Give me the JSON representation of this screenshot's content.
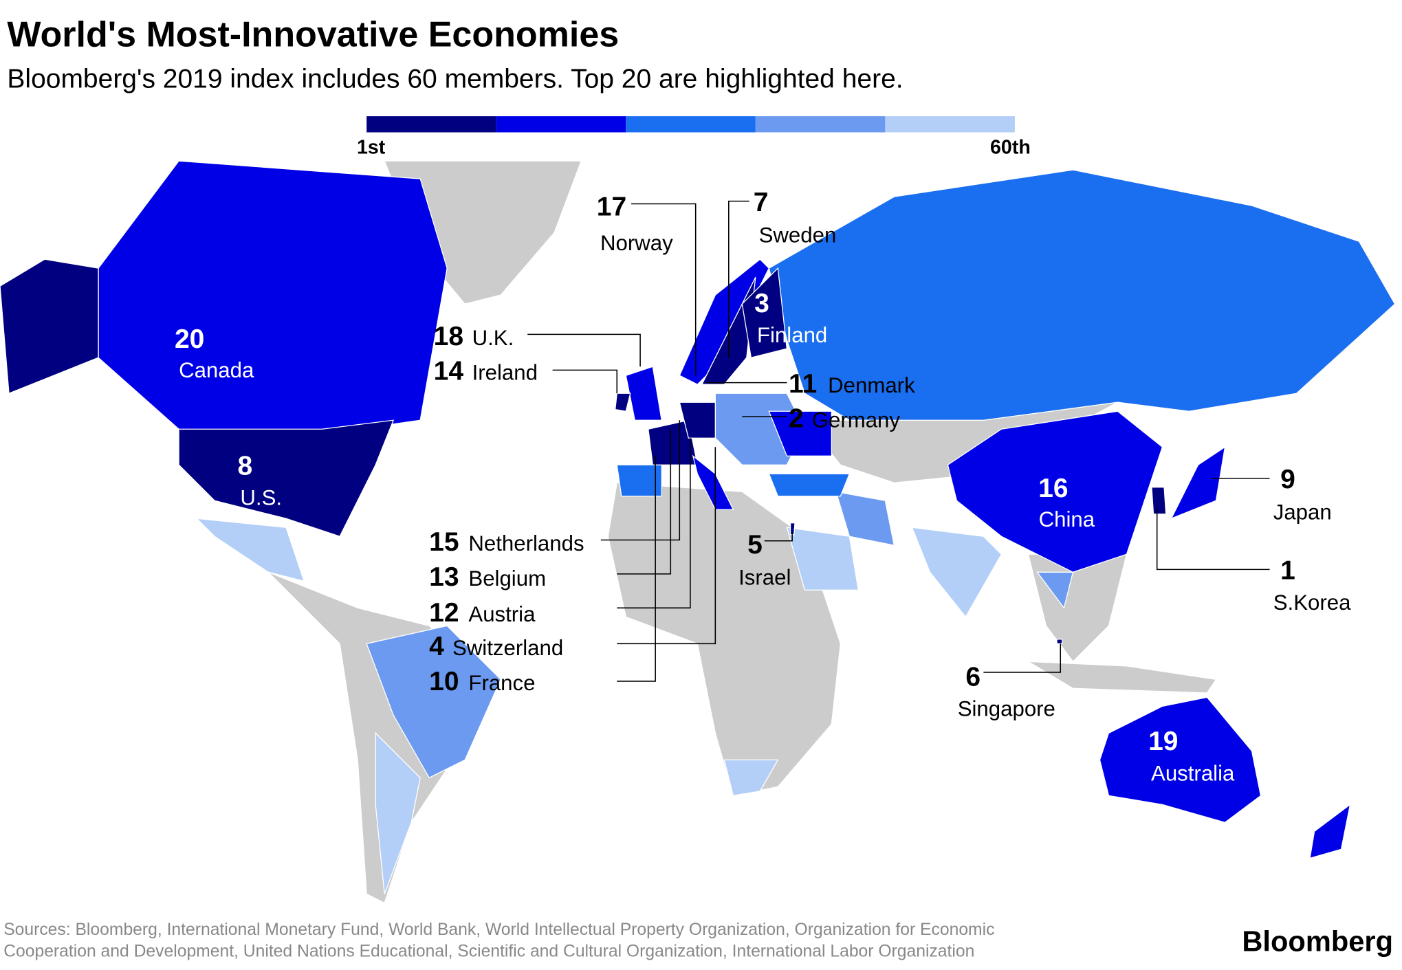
{
  "title": "World's Most-Innovative Economies",
  "subtitle": "Bloomberg's 2019 index includes 60 members. Top 20 are highlighted here.",
  "legend": {
    "colors": [
      "#000080",
      "#0000e6",
      "#1a6ef0",
      "#6b9af0",
      "#b3cff7"
    ],
    "labels": [
      "1st",
      "60th"
    ]
  },
  "economies": [
    {
      "rank": 20,
      "name": "Canada"
    },
    {
      "rank": 8,
      "name": "U.S."
    },
    {
      "rank": 17,
      "name": "Norway"
    },
    {
      "rank": 7,
      "name": "Sweden"
    },
    {
      "rank": 3,
      "name": "Finland"
    },
    {
      "rank": 18,
      "name": "U.K."
    },
    {
      "rank": 14,
      "name": "Ireland"
    },
    {
      "rank": 11,
      "name": "Denmark"
    },
    {
      "rank": 2,
      "name": "Germany"
    },
    {
      "rank": 16,
      "name": "China"
    },
    {
      "rank": 9,
      "name": "Japan"
    },
    {
      "rank": 1,
      "name": "S.Korea"
    },
    {
      "rank": 5,
      "name": "Israel"
    },
    {
      "rank": 6,
      "name": "Singapore"
    },
    {
      "rank": 19,
      "name": "Australia"
    },
    {
      "rank": 15,
      "name": "Netherlands"
    },
    {
      "rank": 13,
      "name": "Belgium"
    },
    {
      "rank": 12,
      "name": "Austria"
    },
    {
      "rank": 4,
      "name": "Switzerland"
    },
    {
      "rank": 10,
      "name": "France"
    }
  ],
  "source": [
    "Sources: Bloomberg, International Monetary Fund, World Bank, World Intellectual Property Organization, Organization for Economic",
    "Cooperation and Development, United Nations Educational, Scientific and Cultural Organization, International Labor Organization"
  ],
  "brand": "Bloomberg"
}
